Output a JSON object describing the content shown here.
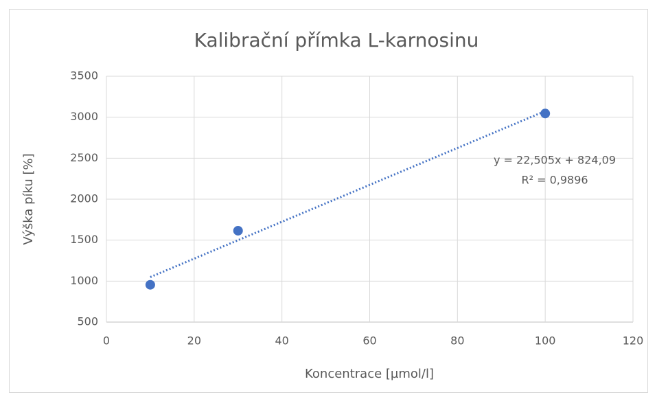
{
  "chart_data": {
    "type": "scatter",
    "title": "Kalibrační přímka L-karnosinu",
    "x_label": "Koncentrace [µmol/l]",
    "y_label": "Výška píku [%]",
    "series": [
      {
        "name": "L-karnosin",
        "color": "#4472c4",
        "x": [
          10,
          30,
          100
        ],
        "values": [
          955,
          1615,
          3045
        ]
      }
    ],
    "trendline": {
      "color": "#4472c4",
      "x": [
        10,
        100
      ],
      "values": [
        1049.14,
        3074.59
      ],
      "equation": "y = 22,505x + 824,09",
      "r2": "R² = 0,9896"
    },
    "xlim": [
      0,
      120
    ],
    "xticks": [
      0,
      20,
      40,
      60,
      80,
      100,
      120
    ],
    "ylim": [
      500,
      3500
    ],
    "yticks": [
      500,
      1000,
      1500,
      2000,
      2500,
      3000,
      3500
    ],
    "grid": true
  }
}
